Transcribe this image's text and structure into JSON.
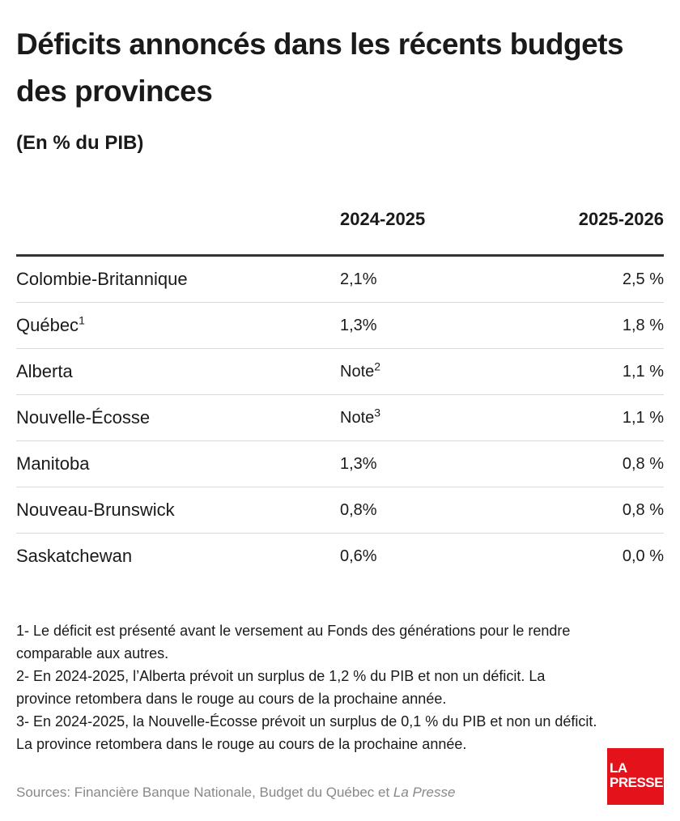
{
  "header": {
    "title": "Déficits annoncés dans les récents budgets des provinces",
    "subtitle": "(En % du PIB)"
  },
  "chart_data": {
    "type": "table",
    "title": "Déficits annoncés dans les récents budgets des provinces",
    "subtitle": "(En % du PIB)",
    "columns": [
      "",
      "2024-2025",
      "2025-2026"
    ],
    "rows": [
      {
        "province": "Colombie-Britannique",
        "sup": "",
        "y2024": "2,1%",
        "y2024_sup": "",
        "y2025": "2,5 %"
      },
      {
        "province": "Québec",
        "sup": "1",
        "y2024": "1,3%",
        "y2024_sup": "",
        "y2025": "1,8 %"
      },
      {
        "province": "Alberta",
        "sup": "",
        "y2024": "Note",
        "y2024_sup": "2",
        "y2025": "1,1 %"
      },
      {
        "province": "Nouvelle-Écosse",
        "sup": "",
        "y2024": "Note",
        "y2024_sup": "3",
        "y2025": "1,1 %"
      },
      {
        "province": "Manitoba",
        "sup": "",
        "y2024": "1,3%",
        "y2024_sup": "",
        "y2025": "0,8 %"
      },
      {
        "province": "Nouveau-Brunswick",
        "sup": "",
        "y2024": "0,8%",
        "y2024_sup": "",
        "y2025": "0,8 %"
      },
      {
        "province": "Saskatchewan",
        "sup": "",
        "y2024": "0,6%",
        "y2024_sup": "",
        "y2025": "0,0 %"
      }
    ]
  },
  "notes": [
    "1- Le déficit est présenté avant le versement au Fonds des générations pour le rendre comparable aux autres.",
    "2- En 2024-2025, l’Alberta prévoit un surplus de 1,2 % du PIB et non un déficit. La province retombera dans le rouge au cours de la prochaine année.",
    "3- En 2024-2025, la Nouvelle-Écosse prévoit un surplus de 0,1 % du PIB et non un déficit. La province retombera dans le rouge au cours de la prochaine année."
  ],
  "sources": {
    "prefix": "Sources: Financière Banque Nationale, Budget du Québec et ",
    "italic": "La Presse"
  },
  "logo": {
    "line1": "LA",
    "line2": "PRESSE",
    "color": "#e3121b"
  }
}
